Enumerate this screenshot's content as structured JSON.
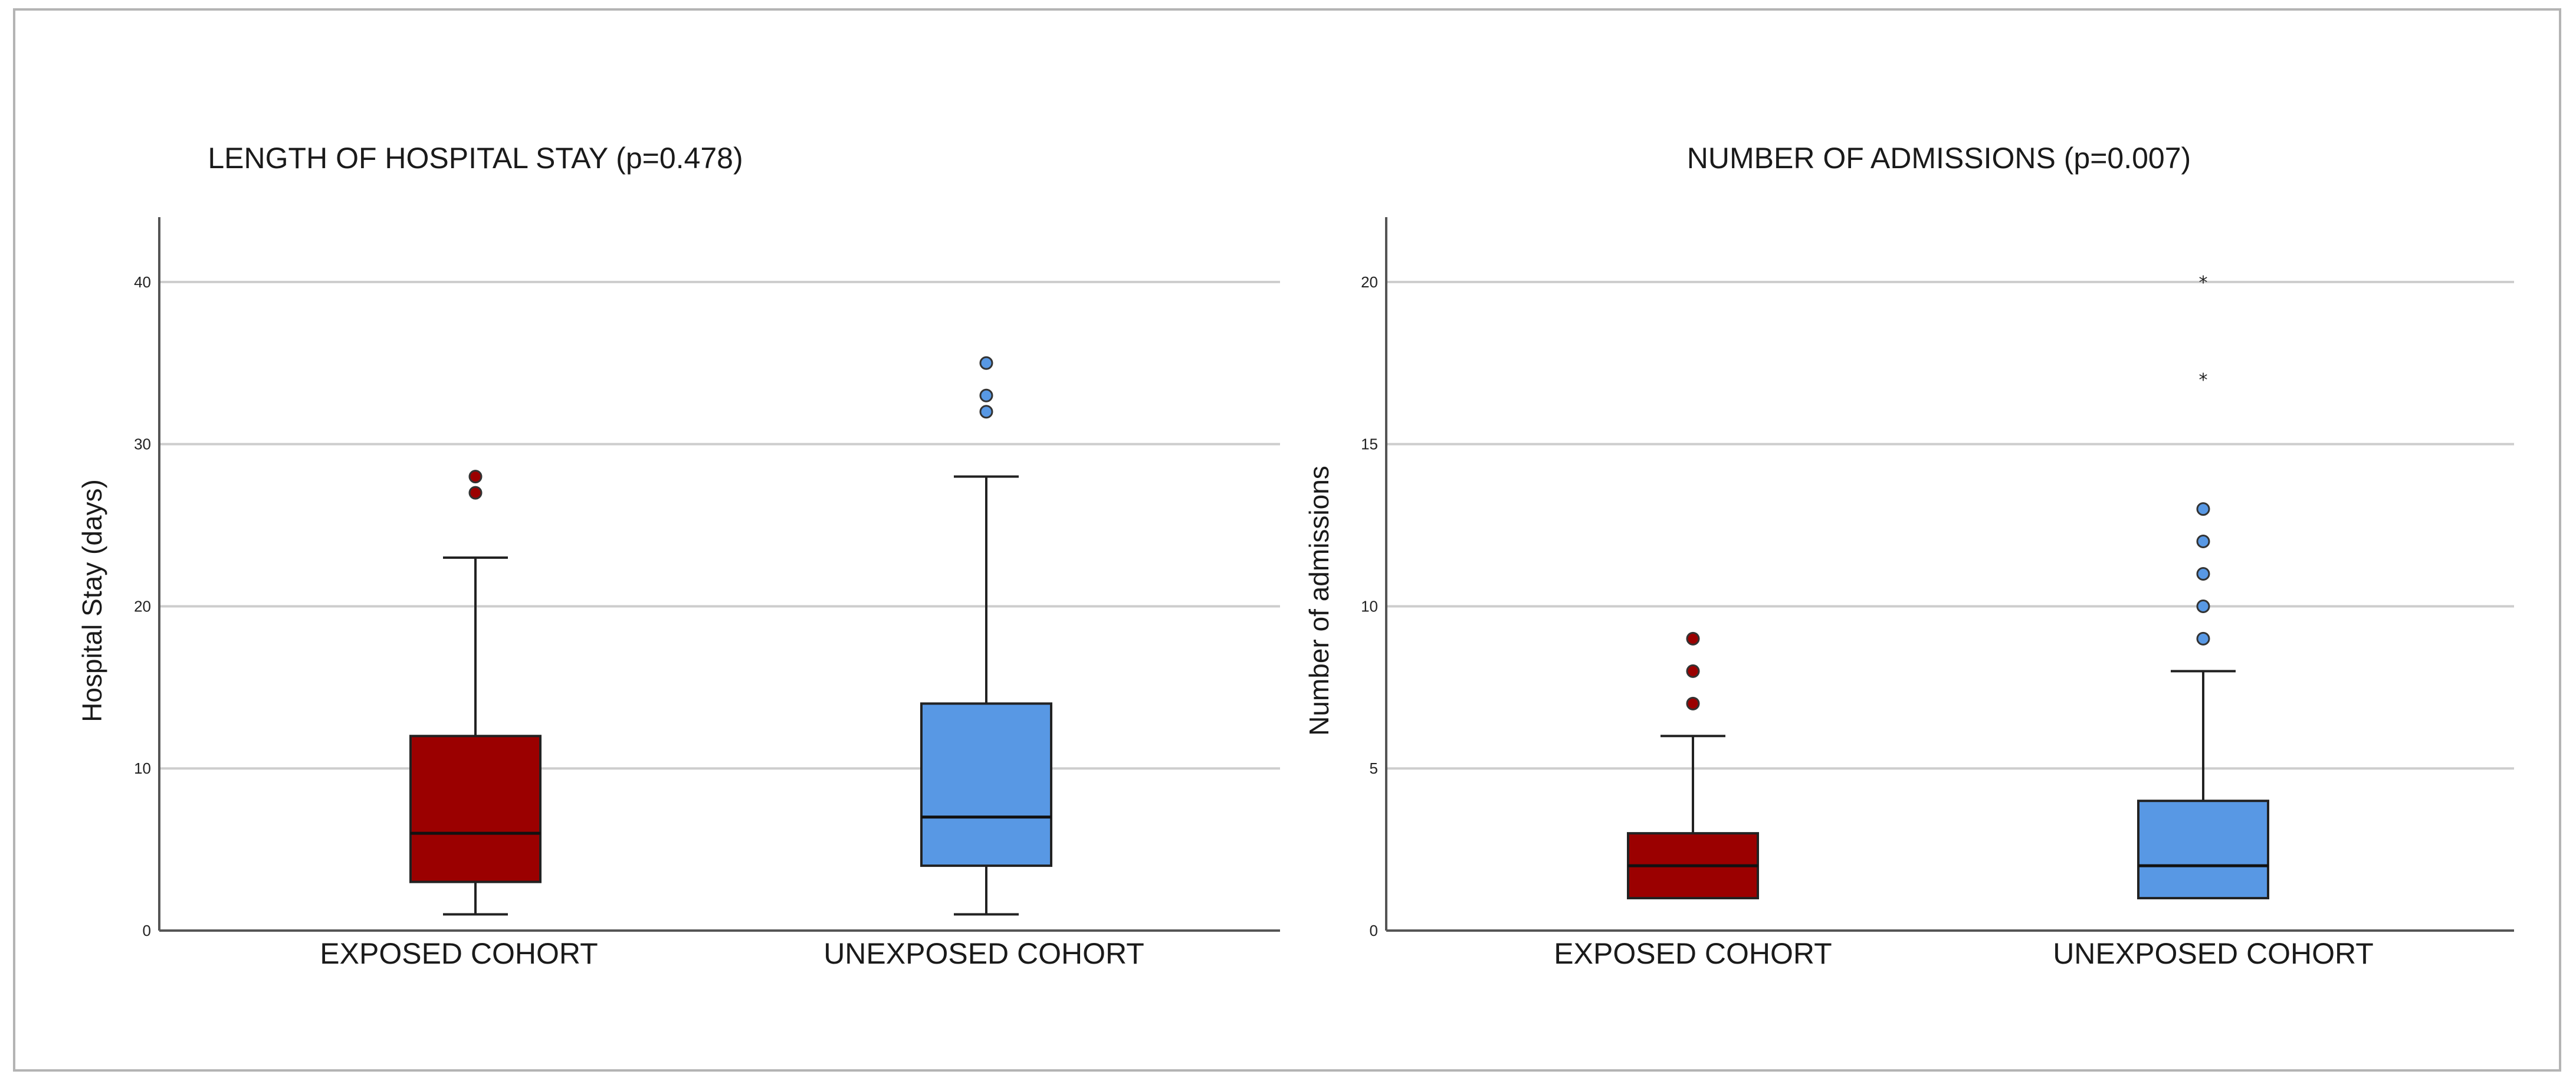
{
  "colors": {
    "exposed": "#9b0000",
    "unexposed": "#5898e4",
    "grid": "#cdcdcd",
    "axis": "#555555"
  },
  "chart_data": [
    {
      "type": "boxplot",
      "title": "LENGTH OF HOSPITAL STAY (p=0.478)",
      "ylabel": "Hospital Stay (days)",
      "ylim": [
        0,
        44
      ],
      "yticks": [
        "0",
        "10",
        "20",
        "30",
        "40"
      ],
      "grid": true,
      "categories": [
        "EXPOSED COHORT",
        "UNEXPOSED COHORT"
      ],
      "series": [
        {
          "category": "EXPOSED COHORT",
          "color": "exposed",
          "whisker_low": 1,
          "q1": 3,
          "median": 6,
          "q3": 12,
          "whisker_high": 23,
          "outliers": [
            27,
            28
          ],
          "extremes": []
        },
        {
          "category": "UNEXPOSED COHORT",
          "color": "unexposed",
          "whisker_low": 1,
          "q1": 4,
          "median": 7,
          "q3": 14,
          "whisker_high": 28,
          "outliers": [
            32,
            33,
            35
          ],
          "extremes": []
        }
      ]
    },
    {
      "type": "boxplot",
      "title": "NUMBER OF ADMISSIONS (p=0.007)",
      "ylabel": "Number of admissions",
      "ylim": [
        0,
        22
      ],
      "yticks": [
        "0",
        "5",
        "10",
        "15",
        "20"
      ],
      "grid": true,
      "categories": [
        "EXPOSED COHORT",
        "UNEXPOSED COHORT"
      ],
      "series": [
        {
          "category": "EXPOSED COHORT",
          "color": "exposed",
          "whisker_low": 1,
          "q1": 1,
          "median": 2,
          "q3": 3,
          "whisker_high": 6,
          "outliers": [
            7,
            8,
            9
          ],
          "extremes": []
        },
        {
          "category": "UNEXPOSED COHORT",
          "color": "unexposed",
          "whisker_low": 1,
          "q1": 1,
          "median": 2,
          "q3": 4,
          "whisker_high": 8,
          "outliers": [
            9,
            10,
            11,
            12,
            13
          ],
          "extremes": [
            17,
            20
          ]
        }
      ]
    }
  ]
}
